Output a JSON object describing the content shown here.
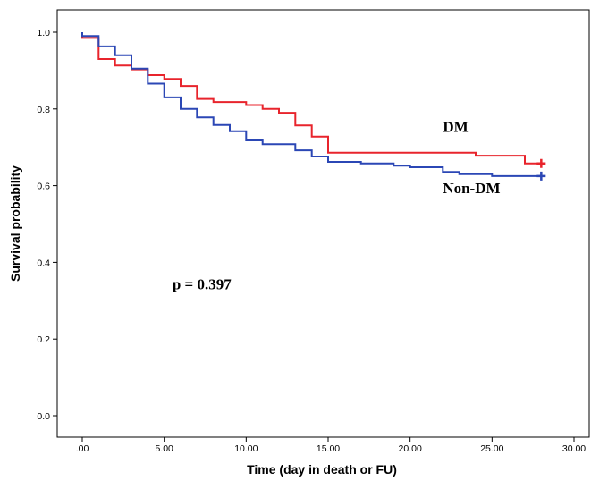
{
  "chart_data": {
    "type": "line",
    "step": true,
    "xlabel": "Time (day in death or FU)",
    "ylabel": "Survival probability",
    "xlim": [
      0,
      30
    ],
    "ylim": [
      0,
      1.0
    ],
    "x_ticks": [
      0,
      5,
      10,
      15,
      20,
      25,
      30
    ],
    "x_tick_labels": [
      ".00",
      "5.00",
      "10.00",
      "15.00",
      "20.00",
      "25.00",
      "30.00"
    ],
    "y_ticks": [
      0,
      0.2,
      0.4,
      0.6,
      0.8,
      1.0
    ],
    "y_tick_labels": [
      "0.0",
      "0.2",
      "0.4",
      "0.6",
      "0.8",
      "1.0"
    ],
    "grid": false,
    "annotations": [
      {
        "text": "p = 0.397",
        "x": 5.5,
        "y": 0.33
      },
      {
        "text": "DM",
        "x": 22,
        "y": 0.74
      },
      {
        "text": "Non-DM",
        "x": 22,
        "y": 0.58
      }
    ],
    "series": [
      {
        "name": "DM",
        "color": "#e8242c",
        "censor_mark": {
          "x": 28,
          "y": 0.658
        },
        "points": [
          [
            0,
            1.0
          ],
          [
            0,
            0.985
          ],
          [
            1,
            0.985
          ],
          [
            1,
            0.93
          ],
          [
            2,
            0.93
          ],
          [
            2,
            0.913
          ],
          [
            3,
            0.913
          ],
          [
            3,
            0.903
          ],
          [
            4,
            0.903
          ],
          [
            4,
            0.888
          ],
          [
            5,
            0.888
          ],
          [
            5,
            0.878
          ],
          [
            6,
            0.878
          ],
          [
            6,
            0.86
          ],
          [
            7,
            0.86
          ],
          [
            7,
            0.826
          ],
          [
            8,
            0.826
          ],
          [
            8,
            0.818
          ],
          [
            10,
            0.818
          ],
          [
            10,
            0.81
          ],
          [
            11,
            0.81
          ],
          [
            11,
            0.8
          ],
          [
            12,
            0.8
          ],
          [
            12,
            0.79
          ],
          [
            13,
            0.79
          ],
          [
            13,
            0.757
          ],
          [
            14,
            0.757
          ],
          [
            14,
            0.728
          ],
          [
            15,
            0.728
          ],
          [
            15,
            0.686
          ],
          [
            24,
            0.686
          ],
          [
            24,
            0.678
          ],
          [
            27,
            0.678
          ],
          [
            27,
            0.658
          ],
          [
            28,
            0.658
          ]
        ]
      },
      {
        "name": "Non-DM",
        "color": "#2b47b5",
        "censor_mark": {
          "x": 28,
          "y": 0.625
        },
        "points": [
          [
            0,
            1.0
          ],
          [
            0,
            0.99
          ],
          [
            1,
            0.99
          ],
          [
            1,
            0.963
          ],
          [
            2,
            0.963
          ],
          [
            2,
            0.94
          ],
          [
            3,
            0.94
          ],
          [
            3,
            0.905
          ],
          [
            4,
            0.905
          ],
          [
            4,
            0.866
          ],
          [
            5,
            0.866
          ],
          [
            5,
            0.83
          ],
          [
            6,
            0.83
          ],
          [
            6,
            0.8
          ],
          [
            7,
            0.8
          ],
          [
            7,
            0.778
          ],
          [
            8,
            0.778
          ],
          [
            8,
            0.758
          ],
          [
            9,
            0.758
          ],
          [
            9,
            0.742
          ],
          [
            10,
            0.742
          ],
          [
            10,
            0.718
          ],
          [
            11,
            0.718
          ],
          [
            11,
            0.708
          ],
          [
            13,
            0.708
          ],
          [
            13,
            0.692
          ],
          [
            14,
            0.692
          ],
          [
            14,
            0.676
          ],
          [
            15,
            0.676
          ],
          [
            15,
            0.662
          ],
          [
            17,
            0.662
          ],
          [
            17,
            0.658
          ],
          [
            19,
            0.658
          ],
          [
            19,
            0.652
          ],
          [
            20,
            0.652
          ],
          [
            20,
            0.648
          ],
          [
            22,
            0.648
          ],
          [
            22,
            0.636
          ],
          [
            23,
            0.636
          ],
          [
            23,
            0.63
          ],
          [
            25,
            0.63
          ],
          [
            25,
            0.625
          ],
          [
            28,
            0.625
          ]
        ]
      }
    ]
  }
}
